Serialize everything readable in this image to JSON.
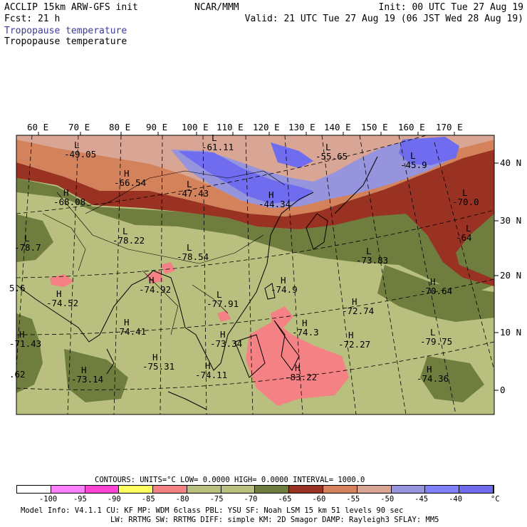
{
  "header": {
    "model": "ACCLIP 15km ARW-GFS init",
    "forecast": "Fcst:   21 h",
    "field1": "Tropopause temperature",
    "field2": "Tropopause temperature",
    "org": "NCAR/MMM",
    "init": "Init: 00 UTC Tue 27 Aug 19",
    "valid": "Valid: 21 UTC Tue 27 Aug 19 (06 JST Wed 28 Aug 19)"
  },
  "map": {
    "lon_labels": [
      "60 E",
      "70 E",
      "80 E",
      "90 E",
      "100 E",
      "110 E",
      "120 E",
      "130 E",
      "140 E",
      "150 E",
      "160 E",
      "170 E"
    ],
    "lat_labels": [
      "40 N",
      "30 N",
      "20 N",
      "10 N",
      "0"
    ],
    "centers": [
      {
        "mark": "L",
        "value": "-49.05"
      },
      {
        "mark": "L",
        "value": "-61.11"
      },
      {
        "mark": "L",
        "value": "-55.65"
      },
      {
        "mark": "L",
        "value": "-45.9"
      },
      {
        "mark": "H",
        "value": "-66.54"
      },
      {
        "mark": "L",
        "value": "-47.43"
      },
      {
        "mark": "H",
        "value": "-44.34"
      },
      {
        "mark": "H",
        "value": "-68.08"
      },
      {
        "mark": "L",
        "value": "-70.0"
      },
      {
        "mark": "L",
        "value": "-64"
      },
      {
        "mark": "L",
        "value": "-78.7"
      },
      {
        "mark": "L",
        "value": "-78.22"
      },
      {
        "mark": "L",
        "value": "-78.54"
      },
      {
        "mark": "L",
        "value": "-73.83"
      },
      {
        "mark": "",
        "value": "5.6"
      },
      {
        "mark": "H",
        "value": "-74.52"
      },
      {
        "mark": "H",
        "value": "-74.92"
      },
      {
        "mark": "H",
        "value": "-74.9"
      },
      {
        "mark": "H",
        "value": "-70.64"
      },
      {
        "mark": "L",
        "value": "-77.91"
      },
      {
        "mark": "H",
        "value": "-72.74"
      },
      {
        "mark": "H",
        "value": "-74.41"
      },
      {
        "mark": "H",
        "value": "-71.43"
      },
      {
        "mark": "H",
        "value": "-73.34"
      },
      {
        "mark": "H",
        "value": "-74.3"
      },
      {
        "mark": "H",
        "value": "-72.27"
      },
      {
        "mark": "L",
        "value": "-79.75"
      },
      {
        "mark": "H",
        "value": "-75.31"
      },
      {
        "mark": "H",
        "value": "-73.14"
      },
      {
        "mark": "",
        "value": ".62"
      },
      {
        "mark": "H",
        "value": "-74.11"
      },
      {
        "mark": "H",
        "value": "-83.22"
      },
      {
        "mark": "H",
        "value": "-74.36"
      }
    ],
    "colors": {
      "c1": "#b9c07f",
      "c2": "#6f7d3e",
      "c3": "#993223",
      "c4": "#d4825b",
      "c5": "#d9a595",
      "c6": "#9694dc",
      "c7": "#6f6cf0",
      "c8": "#f48184"
    }
  },
  "info": {
    "contours": "CONTOURS:  UNITS=°C  LOW=  0.0000        HIGH=  0.0000        INTERVAL=   1000.0"
  },
  "colorbar": {
    "colors": [
      "#ffffff",
      "#ff80ff",
      "#ff44d4",
      "#ffff60",
      "#f48184",
      "#b9c07f",
      "#b9c07f",
      "#6f7d3e",
      "#993223",
      "#d4825b",
      "#d9a595",
      "#9694dc",
      "#8080ff",
      "#6f6cf0"
    ],
    "tick_labels": [
      "-100",
      "-95",
      "-90",
      "-85",
      "-80",
      "-75",
      "-70",
      "-65",
      "-60",
      "-55",
      "-50",
      "-45",
      "-40"
    ],
    "unit": "°C"
  },
  "footer": {
    "line1": "Model Info: V4.1.1    CU: KF      MP: WDM 6class  PBL: YSU        SF: Noah LSM     15 km    51 levels   90 sec",
    "line2": "LW: RRTMG    SW: RRTMG   DIFF: simple KM: 2D Smagor DAMP: Rayleigh3  SFLAY: MM5"
  }
}
